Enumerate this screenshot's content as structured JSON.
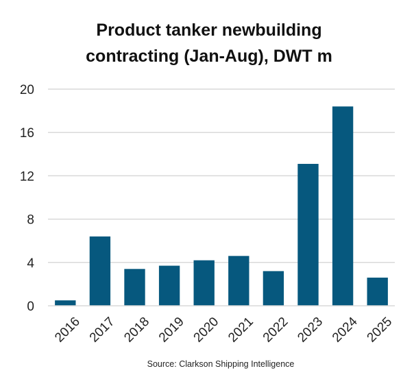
{
  "chart_data": {
    "type": "bar",
    "title_lines": [
      "Product tanker newbuilding",
      "contracting (Jan-Aug), DWT m"
    ],
    "categories": [
      "2016",
      "2017",
      "2018",
      "2019",
      "2020",
      "2021",
      "2022",
      "2023",
      "2024",
      "2025"
    ],
    "values": [
      0.5,
      6.4,
      3.4,
      3.7,
      4.2,
      4.6,
      3.2,
      13.1,
      18.4,
      2.6
    ],
    "y_ticks": [
      "0",
      "4",
      "8",
      "12",
      "16",
      "20"
    ],
    "ylim": [
      0,
      20
    ],
    "grid": true,
    "legend": "none",
    "bar_color": "#06587e",
    "grid_color": "#d9d9d9",
    "source": "Source: Clarkson Shipping Intelligence"
  }
}
